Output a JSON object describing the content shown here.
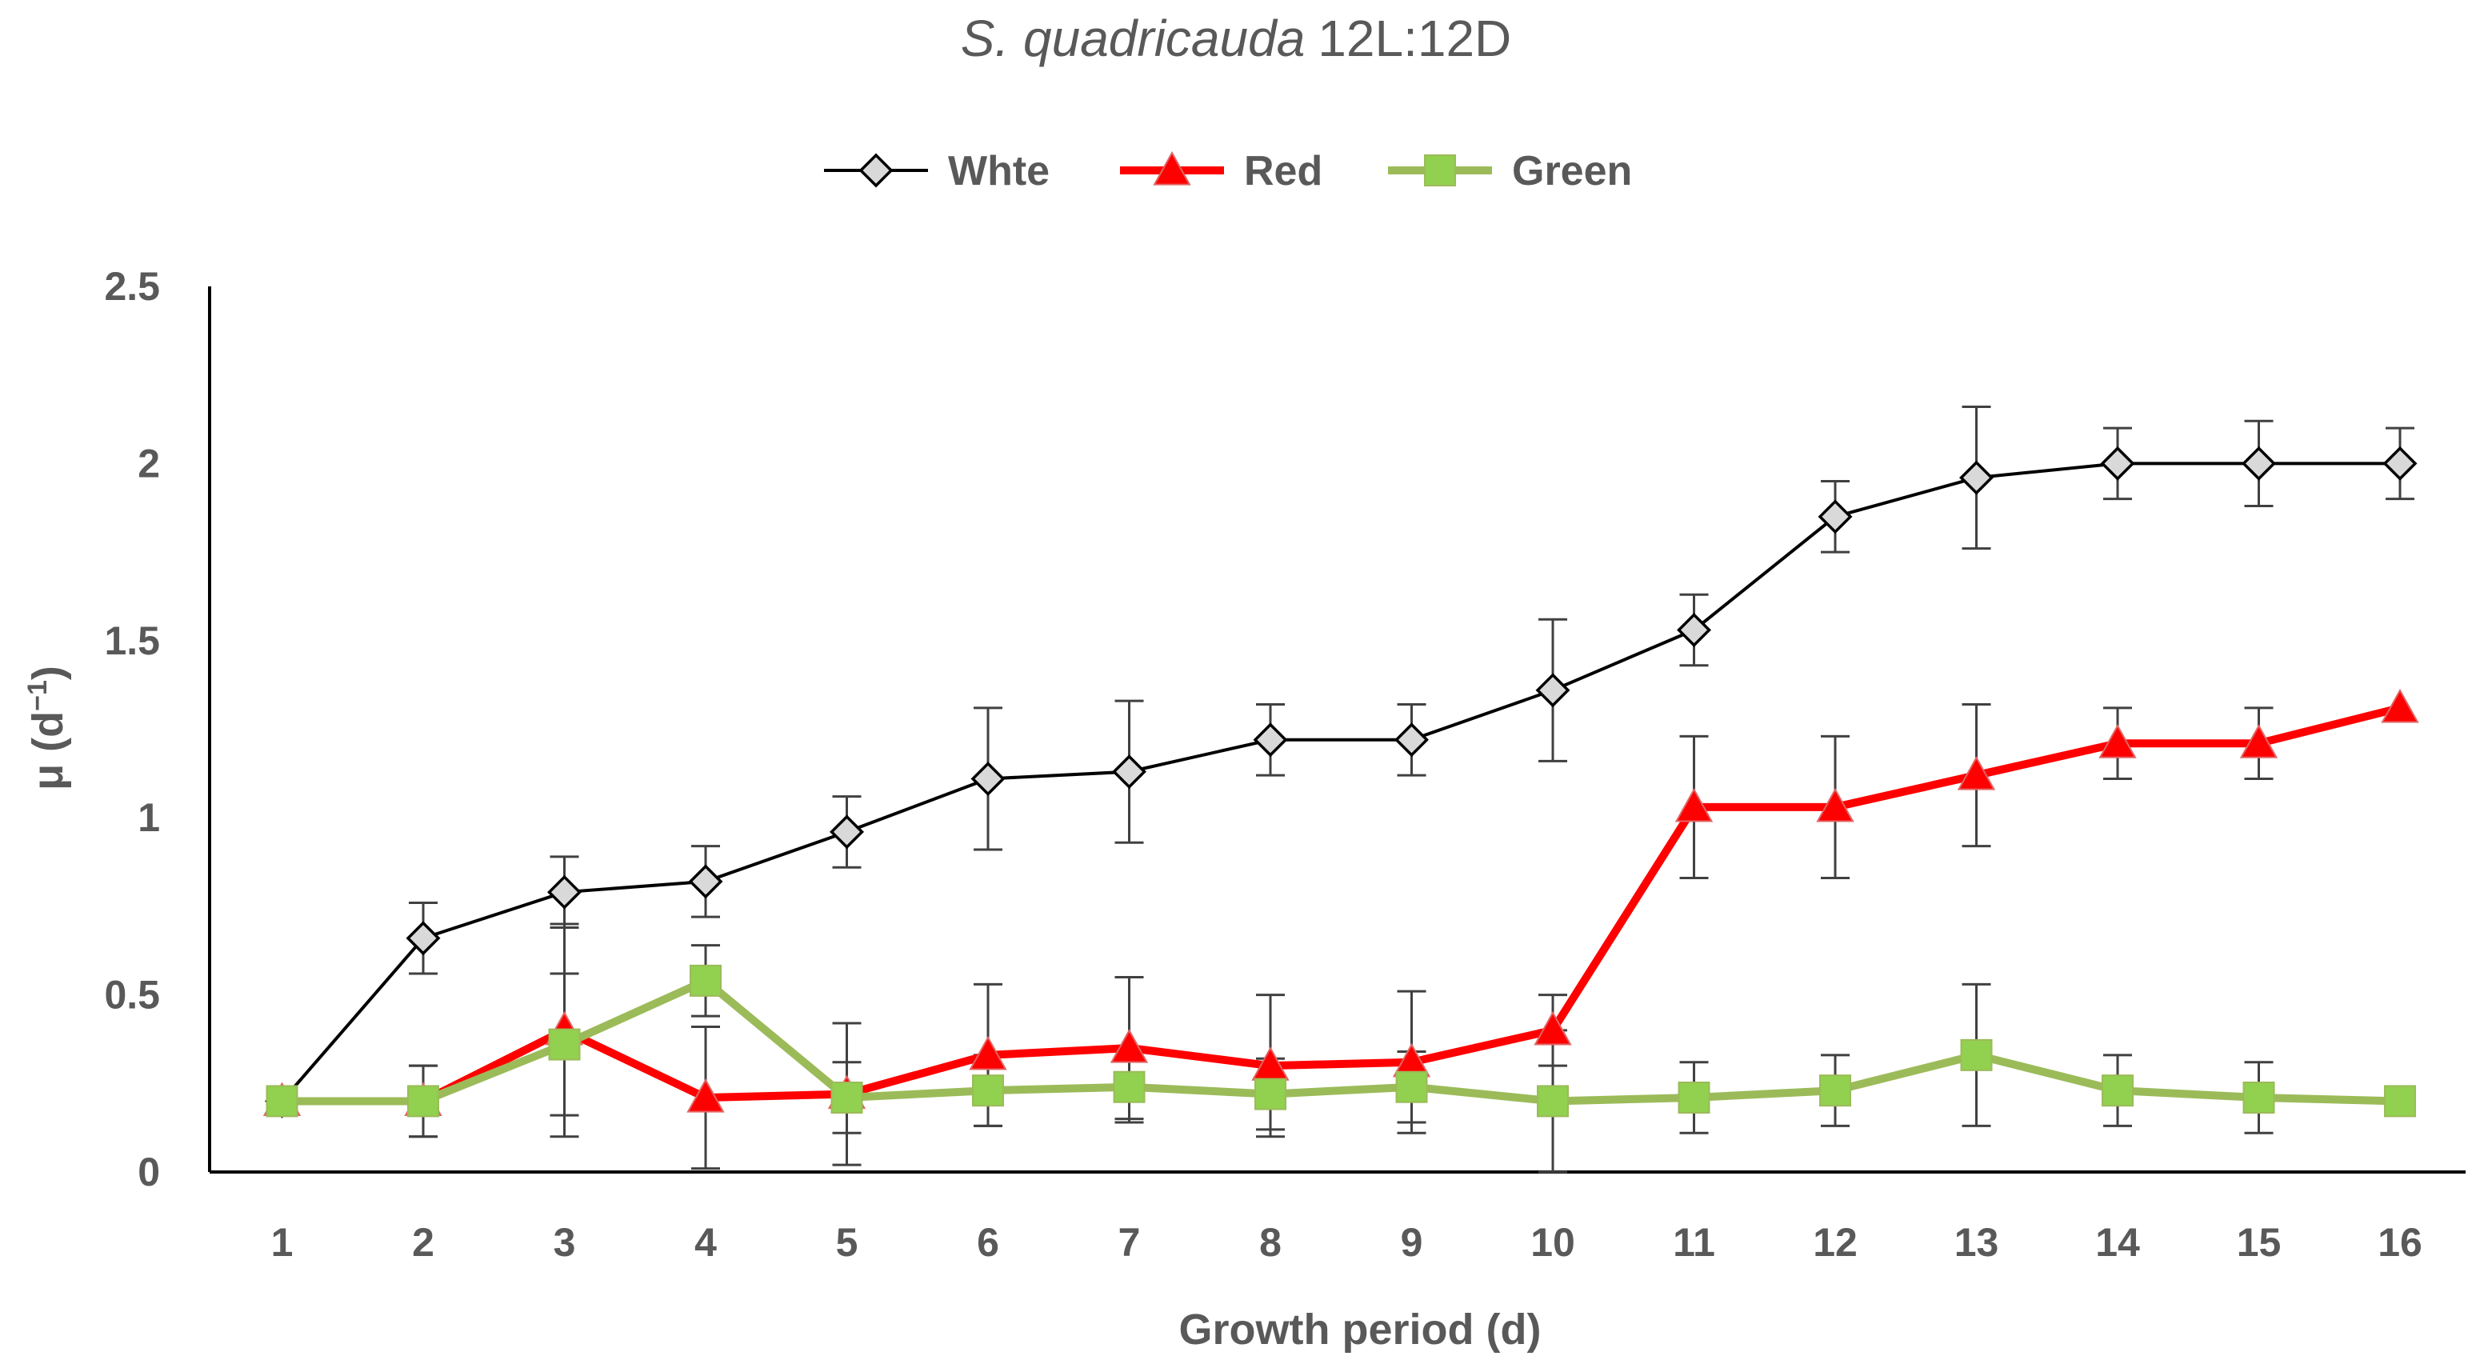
{
  "chart_data": {
    "type": "line",
    "title": {
      "species": "S. quadricauda",
      "condition": "12L:12D"
    },
    "xlabel": "Growth period (d)",
    "ylabel": {
      "text": "μ (d",
      "superscript": "−1",
      "close": ")"
    },
    "x": [
      1,
      2,
      3,
      4,
      5,
      6,
      7,
      8,
      9,
      10,
      11,
      12,
      13,
      14,
      15,
      16
    ],
    "ylim": [
      0,
      2.5
    ],
    "yticks": [
      0,
      0.5,
      1,
      1.5,
      2,
      2.5
    ],
    "ytick_labels": [
      "0",
      "0.5",
      "1",
      "1.5",
      "2",
      "2.5"
    ],
    "legend_position": "top-center",
    "grid": false,
    "series": [
      {
        "name": "Whte",
        "color": "#000000",
        "marker": "diamond",
        "marker_fill": "#d9d9d9",
        "values": [
          0.2,
          0.66,
          0.79,
          0.82,
          0.96,
          1.11,
          1.13,
          1.22,
          1.22,
          1.36,
          1.53,
          1.85,
          1.96,
          2.0,
          2.0,
          2.0
        ],
        "errors": [
          0.0,
          0.1,
          0.1,
          0.1,
          0.1,
          0.2,
          0.2,
          0.1,
          0.1,
          0.2,
          0.1,
          0.1,
          0.2,
          0.1,
          0.12,
          0.1
        ]
      },
      {
        "name": "Red",
        "color": "#ff0000",
        "marker": "triangle",
        "marker_fill": "#ff0000",
        "values": [
          0.2,
          0.2,
          0.4,
          0.21,
          0.22,
          0.33,
          0.35,
          0.3,
          0.31,
          0.4,
          1.03,
          1.03,
          1.12,
          1.21,
          1.21,
          1.31
        ],
        "errors": [
          0.0,
          0.1,
          0.3,
          0.2,
          0.2,
          0.2,
          0.2,
          0.2,
          0.2,
          0.1,
          0.2,
          0.2,
          0.2,
          0.1,
          0.1,
          0.0
        ]
      },
      {
        "name": "Green",
        "color": "#9bbb59",
        "marker": "square",
        "marker_fill": "#92d050",
        "values": [
          0.2,
          0.2,
          0.36,
          0.54,
          0.21,
          0.23,
          0.24,
          0.22,
          0.24,
          0.2,
          0.21,
          0.23,
          0.33,
          0.23,
          0.21,
          0.2
        ],
        "errors": [
          0.0,
          0.1,
          0.2,
          0.1,
          0.1,
          0.1,
          0.1,
          0.1,
          0.1,
          0.2,
          0.1,
          0.1,
          0.2,
          0.1,
          0.1,
          0.0
        ]
      }
    ]
  }
}
